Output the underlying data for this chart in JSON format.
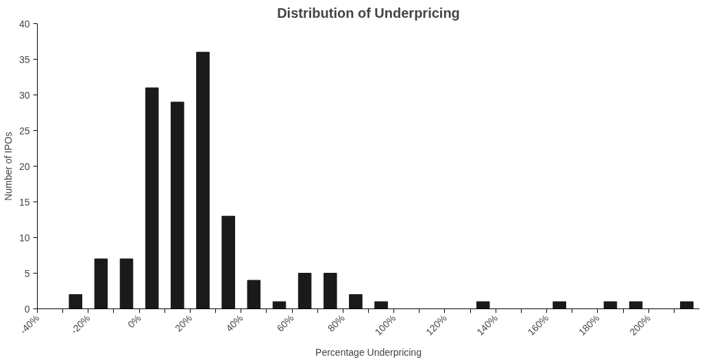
{
  "chart_data": {
    "type": "histogram",
    "title": "Distribution of Underpricing",
    "xlabel": "Percentage Underpricing",
    "ylabel": "Number of IPOs",
    "bins": [
      -40,
      -30,
      -20,
      -10,
      0,
      10,
      20,
      30,
      40,
      50,
      60,
      70,
      80,
      90,
      100,
      110,
      120,
      130,
      140,
      150,
      160,
      170,
      180,
      190,
      200,
      210,
      220
    ],
    "values": [
      0,
      2,
      7,
      7,
      31,
      29,
      36,
      13,
      4,
      1,
      5,
      5,
      2,
      1,
      0,
      0,
      0,
      1,
      0,
      0,
      1,
      0,
      1,
      1,
      0,
      1
    ],
    "color": "#1a1a1a",
    "xlim": [
      -40,
      220
    ],
    "ylim": [
      0,
      40
    ],
    "xticks": [
      {
        "value": -40,
        "label": "-40%"
      },
      {
        "value": -30,
        "label": null
      },
      {
        "value": -20,
        "label": "-20%"
      },
      {
        "value": -10,
        "label": null
      },
      {
        "value": 0,
        "label": "0%"
      },
      {
        "value": 10,
        "label": null
      },
      {
        "value": 20,
        "label": "20%"
      },
      {
        "value": 30,
        "label": null
      },
      {
        "value": 40,
        "label": "40%"
      },
      {
        "value": 50,
        "label": null
      },
      {
        "value": 60,
        "label": "60%"
      },
      {
        "value": 70,
        "label": null
      },
      {
        "value": 80,
        "label": "80%"
      },
      {
        "value": 90,
        "label": null
      },
      {
        "value": 100,
        "label": "100%"
      },
      {
        "value": 110,
        "label": null
      },
      {
        "value": 120,
        "label": "120%"
      },
      {
        "value": 130,
        "label": null
      },
      {
        "value": 140,
        "label": "140%"
      },
      {
        "value": 150,
        "label": null
      },
      {
        "value": 160,
        "label": "160%"
      },
      {
        "value": 170,
        "label": null
      },
      {
        "value": 180,
        "label": "180%"
      },
      {
        "value": 190,
        "label": null
      },
      {
        "value": 200,
        "label": "200%"
      },
      {
        "value": 210,
        "label": null
      }
    ],
    "yticks": [
      0,
      5,
      10,
      15,
      20,
      25,
      30,
      35,
      40
    ]
  }
}
